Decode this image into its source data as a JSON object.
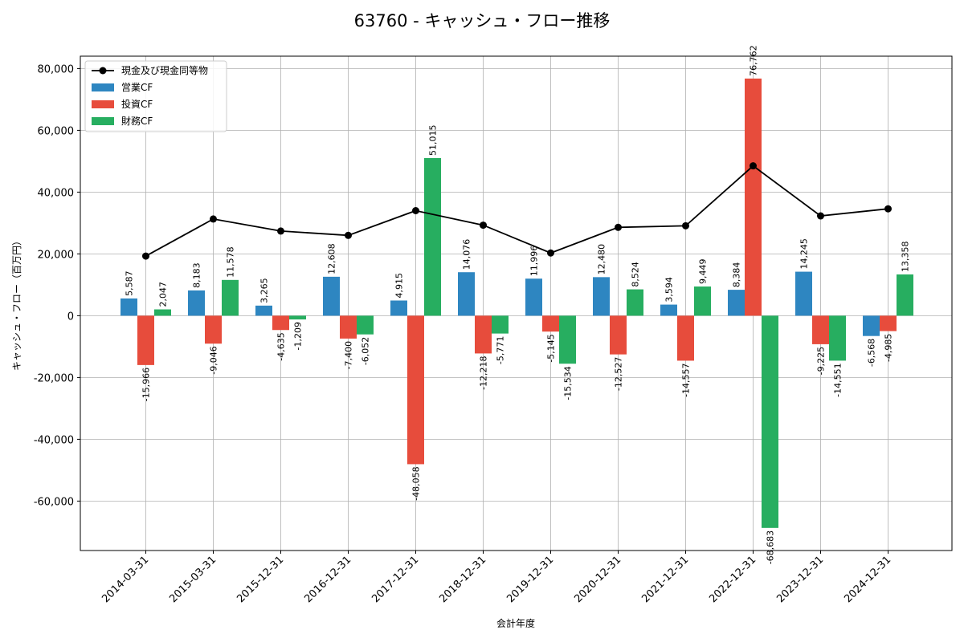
{
  "chart_data": {
    "type": "bar",
    "title": "63760 - キャッシュ・フロー推移",
    "xlabel": "会計年度",
    "ylabel": "キャッシュ・フロー（百万円）",
    "ylim": [
      -76000,
      84000
    ],
    "yticks": [
      -60000,
      -40000,
      -20000,
      0,
      20000,
      40000,
      60000,
      80000
    ],
    "ytick_labels": [
      "-60,000",
      "-40,000",
      "-20,000",
      "0",
      "20,000",
      "40,000",
      "60,000",
      "80,000"
    ],
    "grid": true,
    "legend_position": "top-left",
    "categories": [
      "2014-03-31",
      "2015-03-31",
      "2015-12-31",
      "2016-12-31",
      "2017-12-31",
      "2018-12-31",
      "2019-12-31",
      "2020-12-31",
      "2021-12-31",
      "2022-12-31",
      "2023-12-31",
      "2024-12-31"
    ],
    "series": [
      {
        "name": "営業CF",
        "kind": "bar",
        "color": "#2e86c1",
        "values": [
          5587,
          8183,
          3265,
          12608,
          4915,
          14076,
          11996,
          12480,
          3594,
          8384,
          14245,
          -6568
        ],
        "labels": [
          "5,587",
          "8,183",
          "3,265",
          "12,608",
          "4,915",
          "14,076",
          "11,996",
          "12,480",
          "3,594",
          "8,384",
          "14,245",
          "-6,568"
        ]
      },
      {
        "name": "投資CF",
        "kind": "bar",
        "color": "#e74c3c",
        "values": [
          -15966,
          -9046,
          -4635,
          -7400,
          -48058,
          -12218,
          -5145,
          -12527,
          -14557,
          76762,
          -9225,
          -4985
        ],
        "labels": [
          "-15,966",
          "-9,046",
          "-4,635",
          "-7,400",
          "-48,058",
          "-12,218",
          "-5,145",
          "-12,527",
          "-14,557",
          "76,762",
          "-9,225",
          "-4,985"
        ]
      },
      {
        "name": "財務CF",
        "kind": "bar",
        "color": "#27ae60",
        "values": [
          2047,
          11578,
          -1209,
          -6052,
          51015,
          -5771,
          -15534,
          8524,
          9449,
          -68683,
          -14551,
          13358
        ],
        "labels": [
          "2,047",
          "11,578",
          "-1,209",
          "-6,052",
          "51,015",
          "-5,771",
          "-15,534",
          "8,524",
          "9,449",
          "-68,683",
          "-14,551",
          "13,358"
        ]
      },
      {
        "name": "現金及び現金同等物",
        "kind": "line",
        "color": "#000000",
        "values": [
          19300,
          31300,
          27400,
          26000,
          34000,
          29300,
          20300,
          28600,
          29100,
          48500,
          32300,
          34600
        ]
      }
    ]
  }
}
